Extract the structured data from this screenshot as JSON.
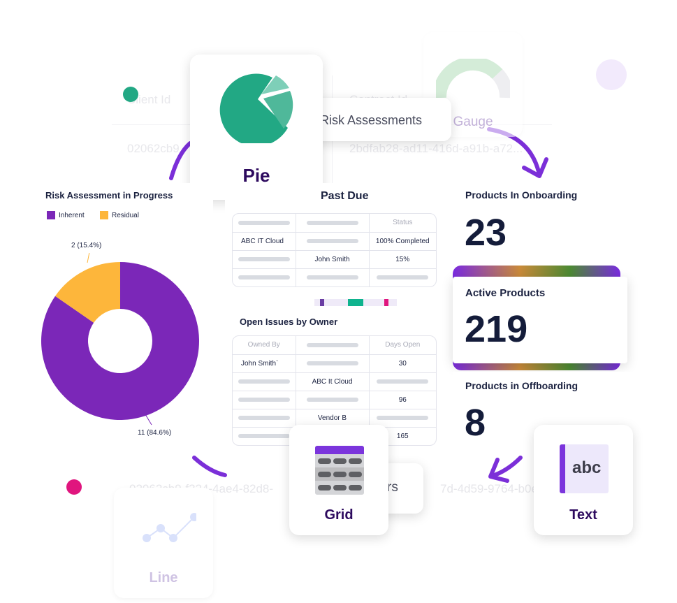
{
  "background": {
    "headers": [
      "Client Id",
      "Contract Id"
    ],
    "row_values": [
      "02062cb9",
      "2bdfab28-ad11-416d-a91b-a72..."
    ],
    "bottom_row": [
      "02062cb9-f324-4ae4-82d8-",
      "7d-4d59-9764-b0e"
    ]
  },
  "tiles": {
    "pie": "Pie",
    "gauge": "Gauge",
    "grid": "Grid",
    "text": "Text",
    "text_icon": "abc",
    "line": "Line"
  },
  "chips": {
    "risk_assessments": "Risk Assessments",
    "owners_partial": "rs"
  },
  "risk_widget": {
    "title": "Risk Assessment in Progress",
    "legend": [
      {
        "label": "Inherent",
        "color": "#7b27b8"
      },
      {
        "label": "Residual",
        "color": "#fdb63b"
      }
    ],
    "chart_data": {
      "type": "pie",
      "title": "Risk Assessment in Progress",
      "slices": [
        {
          "name": "Inherent",
          "value": 11,
          "percent": 84.6
        },
        {
          "name": "Residual",
          "value": 2,
          "percent": 15.4
        }
      ],
      "labels": [
        "11 (84.6%)",
        "2 (15.4%)"
      ],
      "legend_position": "top-left"
    }
  },
  "past_due": {
    "title": "Past Due",
    "header": [
      "",
      "",
      "Status"
    ],
    "rows": [
      [
        "ABC IT Cloud",
        "",
        "100% Completed"
      ],
      [
        "",
        "John Smith",
        "15%"
      ],
      [
        "",
        "",
        ""
      ]
    ]
  },
  "open_issues": {
    "title": "Open Issues by Owner",
    "header": [
      "Owned By",
      "",
      "Days Open"
    ],
    "rows": [
      [
        "John Smith`",
        "",
        "30"
      ],
      [
        "",
        "ABC It Cloud",
        ""
      ],
      [
        "",
        "",
        "96"
      ],
      [
        "",
        "Vendor B",
        ""
      ],
      [
        "",
        "",
        "165"
      ]
    ]
  },
  "metrics": [
    {
      "label": "Products In Onboarding",
      "value": "23"
    },
    {
      "label": "Active Products",
      "value": "219"
    },
    {
      "label": "Products in Offboarding",
      "value": "8"
    }
  ],
  "colors": {
    "accent": "#7b2fd8",
    "teal": "#22a884",
    "pink": "#e0157e",
    "navy": "#141c3a"
  }
}
